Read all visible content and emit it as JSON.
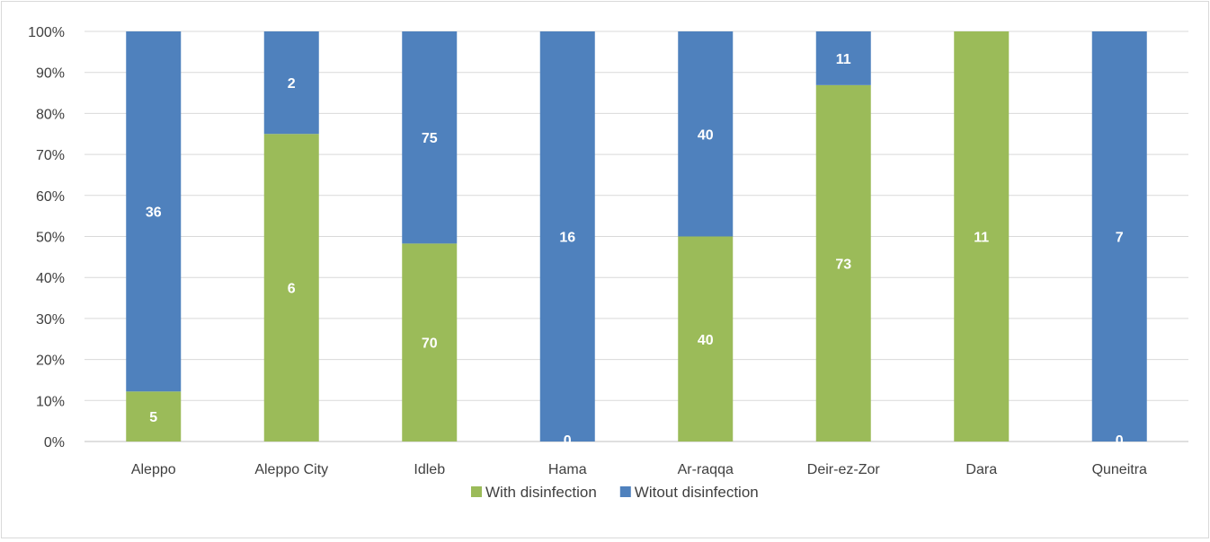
{
  "chart_data": {
    "type": "bar",
    "stacked": true,
    "normalized": true,
    "title": "",
    "xlabel": "",
    "ylabel": "",
    "ylim": [
      0,
      100
    ],
    "yticks": [
      "0%",
      "10%",
      "20%",
      "30%",
      "40%",
      "50%",
      "60%",
      "70%",
      "80%",
      "90%",
      "100%"
    ],
    "categories": [
      "Aleppo",
      "Aleppo City",
      "Idleb",
      "Hama",
      "Ar-raqqa",
      "Deir-ez-Zor",
      "Dara",
      "Quneitra"
    ],
    "series": [
      {
        "name": "With disinfection",
        "color": "#9bbb59",
        "values": [
          5,
          6,
          70,
          0,
          40,
          73,
          11,
          0
        ],
        "labels": [
          "5",
          "6",
          "70",
          "0",
          "40",
          "73",
          "11",
          "0"
        ]
      },
      {
        "name": "Witout disinfection",
        "color": "#4f81bd",
        "values": [
          36,
          2,
          75,
          16,
          40,
          11,
          0,
          7
        ],
        "labels": [
          "36",
          "2",
          "75",
          "16",
          "40",
          "11",
          "",
          "7"
        ]
      }
    ],
    "grid": true,
    "legend_position": "bottom"
  }
}
